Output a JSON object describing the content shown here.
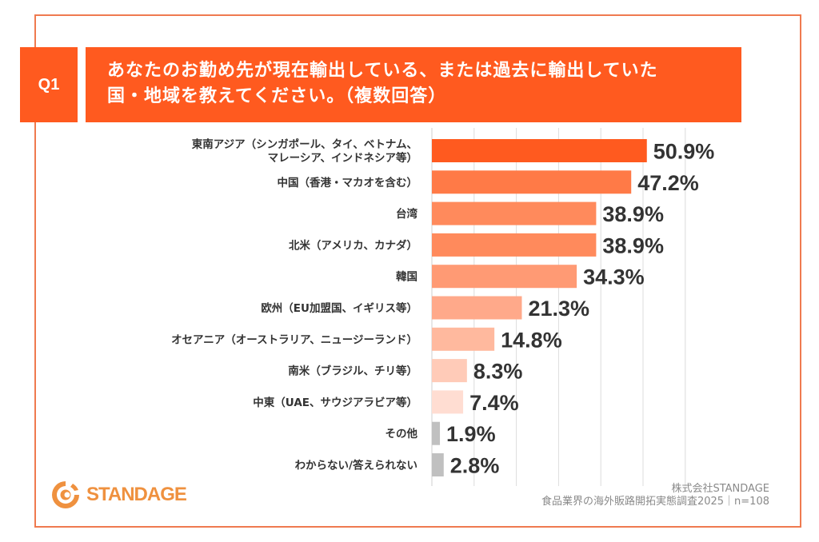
{
  "header": {
    "badge": "Q1",
    "title_line1": "あなたのお勤め先が現在輸出している、または過去に輸出していた",
    "title_line2": "国・地域を教えてください。（複数回答）"
  },
  "colors": {
    "accent": "#ff5a1f",
    "border": "#ef7a4f",
    "logo": "#ef913f",
    "other_bar": "#c0c0c0",
    "text": "#333333"
  },
  "chart_data": {
    "type": "bar",
    "orientation": "horizontal",
    "title": "あなたのお勤め先が現在輸出している、または過去に輸出していた国・地域を教えてください。（複数回答）",
    "xlabel": "",
    "ylabel": "",
    "xlim": [
      0,
      60
    ],
    "grid": true,
    "grid_step": 10,
    "unit": "%",
    "categories": [
      [
        "東南アジア（シンガポール、タイ、ベトナム、",
        "マレーシア、インドネシア等）"
      ],
      [
        "中国（香港・マカオを含む）"
      ],
      [
        "台湾"
      ],
      [
        "北米（アメリカ、カナダ）"
      ],
      [
        "韓国"
      ],
      [
        "欧州（EU加盟国、イギリス等）"
      ],
      [
        "オセアニア（オーストラリア、ニュージーランド）"
      ],
      [
        "南米（ブラジル、チリ等）"
      ],
      [
        "中東（UAE、サウジアラビア等）"
      ],
      [
        "その他"
      ],
      [
        "わからない/答えられない"
      ]
    ],
    "values": [
      50.9,
      47.2,
      38.9,
      38.9,
      34.3,
      21.3,
      14.8,
      8.3,
      7.4,
      1.9,
      2.8
    ],
    "value_labels": [
      "50.9%",
      "47.2%",
      "38.9%",
      "38.9%",
      "34.3%",
      "21.3%",
      "14.8%",
      "8.3%",
      "7.4%",
      "1.9%",
      "2.8%"
    ],
    "bar_colors": [
      "#ff5a1f",
      "#ff7a47",
      "#ff8a5c",
      "#ff8a5c",
      "#ff9a74",
      "#ffa98a",
      "#ffb99e",
      "#ffcbb8",
      "#ffddd2",
      "#c0c0c0",
      "#c0c0c0"
    ]
  },
  "footer": {
    "logo_text": "STANDAGE",
    "company": "株式会社STANDAGE",
    "source": "食品業界の海外販路開拓実態調査2025｜n=108"
  }
}
